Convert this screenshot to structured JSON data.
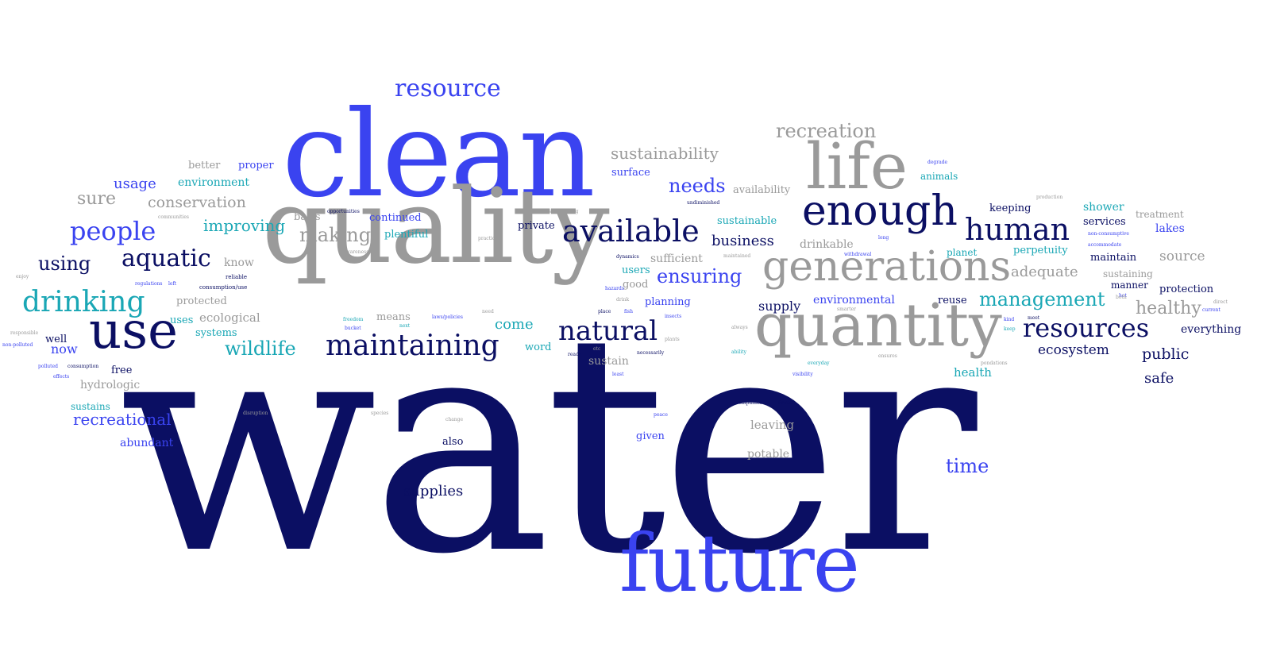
{
  "colors": {
    "navy": "#0b0f63",
    "royal": "#3a43f0",
    "gray": "#9a9a9a",
    "teal": "#1aa7b5",
    "light": "#b8b8b8"
  },
  "words": [
    {
      "text": "water",
      "color": "navy"
    },
    {
      "text": "clean",
      "color": "royal"
    },
    {
      "text": "quality",
      "color": "gray"
    },
    {
      "text": "future",
      "color": "royal"
    },
    {
      "text": "quantity",
      "color": "gray"
    },
    {
      "text": "generations",
      "color": "gray"
    },
    {
      "text": "life",
      "color": "gray"
    },
    {
      "text": "use",
      "color": "navy"
    },
    {
      "text": "enough",
      "color": "navy"
    },
    {
      "text": "resource",
      "color": "royal"
    },
    {
      "text": "available",
      "color": "navy"
    },
    {
      "text": "human",
      "color": "navy"
    },
    {
      "text": "drinking",
      "color": "teal"
    },
    {
      "text": "resources",
      "color": "navy"
    },
    {
      "text": "maintaining",
      "color": "navy"
    },
    {
      "text": "natural",
      "color": "navy"
    },
    {
      "text": "people",
      "color": "royal"
    },
    {
      "text": "aquatic",
      "color": "navy"
    },
    {
      "text": "management",
      "color": "teal"
    },
    {
      "text": "ensuring",
      "color": "royal"
    },
    {
      "text": "recreation",
      "color": "gray"
    },
    {
      "text": "wildlife",
      "color": "teal"
    },
    {
      "text": "needs",
      "color": "royal"
    },
    {
      "text": "using",
      "color": "navy"
    },
    {
      "text": "making",
      "color": "gray"
    },
    {
      "text": "improving",
      "color": "teal"
    },
    {
      "text": "time",
      "color": "royal"
    },
    {
      "text": "sustainability",
      "color": "gray"
    },
    {
      "text": "sure",
      "color": "gray"
    },
    {
      "text": "healthy",
      "color": "gray"
    },
    {
      "text": "recreational",
      "color": "royal"
    },
    {
      "text": "business",
      "color": "navy"
    },
    {
      "text": "conservation",
      "color": "gray"
    },
    {
      "text": "supplies",
      "color": "navy"
    },
    {
      "text": "adequate",
      "color": "gray"
    },
    {
      "text": "source",
      "color": "gray"
    },
    {
      "text": "public",
      "color": "navy"
    },
    {
      "text": "usage",
      "color": "royal"
    },
    {
      "text": "ecosystem",
      "color": "navy"
    },
    {
      "text": "supply",
      "color": "navy"
    },
    {
      "text": "safe",
      "color": "navy"
    },
    {
      "text": "leaving",
      "color": "gray"
    },
    {
      "text": "sustain",
      "color": "gray"
    },
    {
      "text": "now",
      "color": "royal"
    },
    {
      "text": "abundant",
      "color": "royal"
    },
    {
      "text": "hydrologic",
      "color": "gray"
    },
    {
      "text": "environment",
      "color": "teal"
    },
    {
      "text": "come",
      "color": "teal"
    },
    {
      "text": "ecological",
      "color": "gray"
    },
    {
      "text": "everything",
      "color": "navy"
    },
    {
      "text": "treatment",
      "color": "gray"
    },
    {
      "text": "availability",
      "color": "gray"
    },
    {
      "text": "sufficient",
      "color": "gray"
    },
    {
      "text": "planning",
      "color": "royal"
    },
    {
      "text": "potable",
      "color": "gray"
    },
    {
      "text": "environmental",
      "color": "royal"
    },
    {
      "text": "better",
      "color": "gray"
    },
    {
      "text": "proper",
      "color": "royal"
    },
    {
      "text": "surface",
      "color": "royal"
    },
    {
      "text": "drinkable",
      "color": "gray"
    },
    {
      "text": "know",
      "color": "gray"
    },
    {
      "text": "keeping",
      "color": "navy"
    },
    {
      "text": "shower",
      "color": "teal"
    },
    {
      "text": "services",
      "color": "navy"
    },
    {
      "text": "lakes",
      "color": "royal"
    },
    {
      "text": "perpetuity",
      "color": "teal"
    },
    {
      "text": "maintain",
      "color": "navy"
    },
    {
      "text": "sustaining",
      "color": "gray"
    },
    {
      "text": "manner",
      "color": "navy"
    },
    {
      "text": "protection",
      "color": "navy"
    },
    {
      "text": "reuse",
      "color": "navy"
    },
    {
      "text": "health",
      "color": "teal"
    },
    {
      "text": "sustainable",
      "color": "teal"
    },
    {
      "text": "plentiful",
      "color": "teal"
    },
    {
      "text": "continued",
      "color": "royal"
    },
    {
      "text": "private",
      "color": "navy"
    },
    {
      "text": "basis",
      "color": "gray"
    },
    {
      "text": "protected",
      "color": "gray"
    },
    {
      "text": "systems",
      "color": "teal"
    },
    {
      "text": "uses",
      "color": "teal"
    },
    {
      "text": "means",
      "color": "gray"
    },
    {
      "text": "word",
      "color": "teal"
    },
    {
      "text": "free",
      "color": "navy"
    },
    {
      "text": "well",
      "color": "navy"
    },
    {
      "text": "sustains",
      "color": "teal"
    },
    {
      "text": "also",
      "color": "navy"
    },
    {
      "text": "given",
      "color": "royal"
    },
    {
      "text": "users",
      "color": "teal"
    },
    {
      "text": "good",
      "color": "gray"
    },
    {
      "text": "animals",
      "color": "teal"
    },
    {
      "text": "planet",
      "color": "teal"
    },
    {
      "text": "undiminished",
      "color": "navy"
    },
    {
      "text": "dynamics",
      "color": "navy"
    },
    {
      "text": "maintained",
      "color": "gray"
    },
    {
      "text": "withdrawal",
      "color": "royal"
    },
    {
      "text": "long",
      "color": "royal"
    },
    {
      "text": "degrade",
      "color": "royal"
    },
    {
      "text": "surrounding",
      "color": "gray"
    },
    {
      "text": "production",
      "color": "gray"
    },
    {
      "text": "opportunities",
      "color": "navy"
    },
    {
      "text": "practices",
      "color": "gray"
    },
    {
      "text": "non-consumptive",
      "color": "royal"
    },
    {
      "text": "accommodate",
      "color": "royal"
    },
    {
      "text": "communities",
      "color": "gray"
    },
    {
      "text": "awareness",
      "color": "gray"
    },
    {
      "text": "reliable",
      "color": "navy"
    },
    {
      "text": "consumption/use",
      "color": "navy"
    },
    {
      "text": "regulations",
      "color": "royal"
    },
    {
      "text": "left",
      "color": "royal"
    },
    {
      "text": "enjoy",
      "color": "gray"
    },
    {
      "text": "hazards",
      "color": "royal"
    },
    {
      "text": "drink",
      "color": "gray"
    },
    {
      "text": "place",
      "color": "navy"
    },
    {
      "text": "fish",
      "color": "royal"
    },
    {
      "text": "need",
      "color": "gray"
    },
    {
      "text": "freedom",
      "color": "teal"
    },
    {
      "text": "bucket",
      "color": "royal"
    },
    {
      "text": "next",
      "color": "teal"
    },
    {
      "text": "laws/policies",
      "color": "royal"
    },
    {
      "text": "insects",
      "color": "royal"
    },
    {
      "text": "plants",
      "color": "gray"
    },
    {
      "text": "always",
      "color": "gray"
    },
    {
      "text": "ability",
      "color": "teal"
    },
    {
      "text": "everyday",
      "color": "teal"
    },
    {
      "text": "visibility",
      "color": "royal"
    },
    {
      "text": "ready",
      "color": "navy"
    },
    {
      "text": "etc",
      "color": "gray"
    },
    {
      "text": "necessarily",
      "color": "navy"
    },
    {
      "text": "least",
      "color": "royal"
    },
    {
      "text": "ensures",
      "color": "gray"
    },
    {
      "text": "pondations",
      "color": "gray"
    },
    {
      "text": "responsible",
      "color": "gray"
    },
    {
      "text": "non-polluted",
      "color": "royal"
    },
    {
      "text": "polluted",
      "color": "royal"
    },
    {
      "text": "consumption",
      "color": "navy"
    },
    {
      "text": "effects",
      "color": "royal"
    },
    {
      "text": "disruption",
      "color": "gray"
    },
    {
      "text": "species",
      "color": "gray"
    },
    {
      "text": "change",
      "color": "gray"
    },
    {
      "text": "peace",
      "color": "royal"
    },
    {
      "text": "companies",
      "color": "navy"
    },
    {
      "text": "fewest",
      "color": "navy"
    },
    {
      "text": "kind",
      "color": "royal"
    },
    {
      "text": "keep",
      "color": "teal"
    },
    {
      "text": "meet",
      "color": "navy"
    },
    {
      "text": "hot",
      "color": "royal"
    },
    {
      "text": "both",
      "color": "gray"
    },
    {
      "text": "current",
      "color": "royal"
    },
    {
      "text": "direct",
      "color": "gray"
    },
    {
      "text": "smarter",
      "color": "gray"
    }
  ]
}
